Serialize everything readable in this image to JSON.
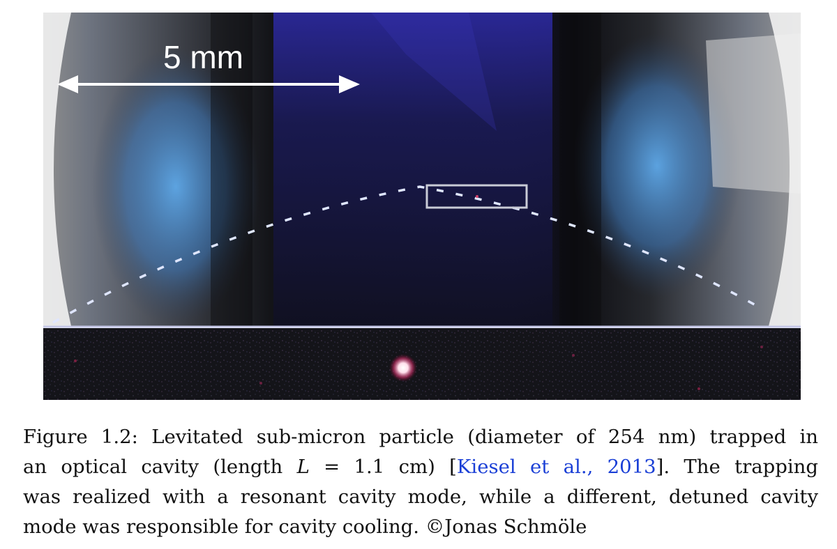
{
  "figure": {
    "scale_bar_label": "5 mm"
  },
  "caption": {
    "line1": "Figure 1.2: Levitated sub-micron particle (diameter of 254 nm) trapped in",
    "line2_a": "an optical cavity (length ",
    "line2_var": "L",
    "line2_b": " = 1.1 cm) [",
    "line2_cite": "Kiesel et al., 2013",
    "line2_c": "].  The trapping",
    "line3": "was realized with a resonant cavity mode, while a different, detuned cavity",
    "line4": "mode was responsible for cavity cooling. ©Jonas Schmöle"
  },
  "colors": {
    "citation": "#1a3fd6",
    "dashed_mode": "#dfe6ff"
  }
}
